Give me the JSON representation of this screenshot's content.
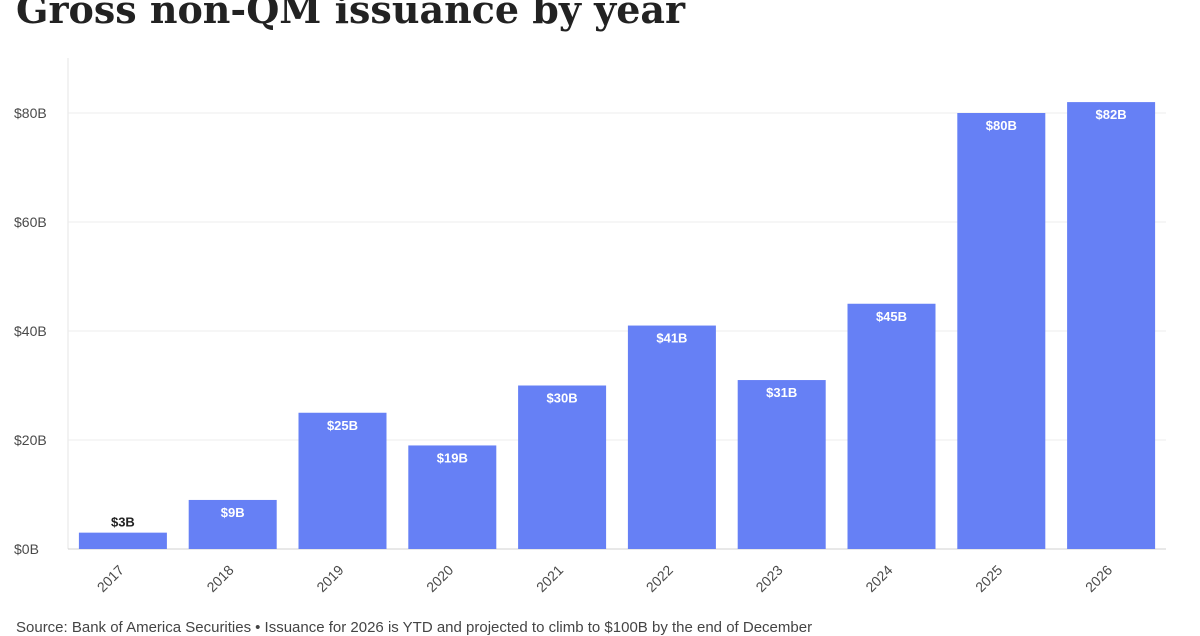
{
  "chart_data": {
    "type": "bar",
    "title": "Gross non-QM issuance by year",
    "categories": [
      "2017",
      "2018",
      "2019",
      "2020",
      "2021",
      "2022",
      "2023",
      "2024",
      "2025",
      "2026"
    ],
    "values": [
      3,
      9,
      25,
      19,
      30,
      41,
      31,
      45,
      80,
      82
    ],
    "data_labels": [
      "$3B",
      "$9B",
      "$25B",
      "$19B",
      "$30B",
      "$41B",
      "$31B",
      "$45B",
      "$80B",
      "$82B"
    ],
    "ylim": [
      0,
      85
    ],
    "yticks": [
      0,
      20,
      40,
      60,
      80
    ],
    "ytick_labels": [
      "$0B",
      "$20B",
      "$40B",
      "$60B",
      "$80B"
    ],
    "grid": true,
    "legend": "none",
    "bar_color": "#6680f5",
    "label_color_inside": "#ffffff",
    "label_color_outside": "#222222"
  },
  "source": {
    "label": "Source: Bank of America Securities",
    "note": "• Issuance for 2026 is YTD and projected to climb to $100B by the end of December"
  }
}
